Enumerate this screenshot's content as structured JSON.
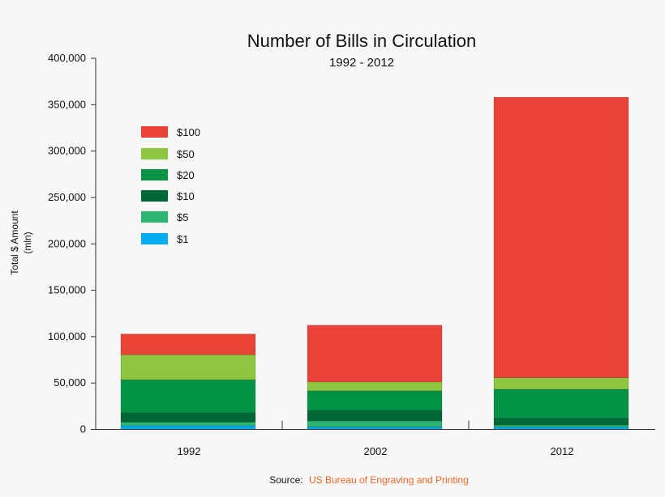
{
  "chart_data": {
    "type": "bar",
    "stacked": true,
    "title": "Number of Bills in Circulation",
    "subtitle": "1992 - 2012",
    "ylabel": "Total $ Amount",
    "ylabel_unit": "(mln)",
    "xlabel": "",
    "ylim": [
      0,
      400000
    ],
    "yticks": [
      0,
      50000,
      100000,
      150000,
      200000,
      250000,
      300000,
      350000,
      400000
    ],
    "ytick_labels": [
      "0",
      "50,000",
      "100,000",
      "150,000",
      "200,000",
      "250,000",
      "300,000",
      "350,000",
      "400,000"
    ],
    "categories": [
      "1992",
      "2002",
      "2012"
    ],
    "series": [
      {
        "name": "$1",
        "color": "#00aeef",
        "values": [
          3900,
          2600,
          2600
        ]
      },
      {
        "name": "$5",
        "color": "#2db574",
        "values": [
          3900,
          6500,
          2200
        ]
      },
      {
        "name": "$10",
        "color": "#006837",
        "values": [
          10000,
          11300,
          7000
        ]
      },
      {
        "name": "$20",
        "color": "#009245",
        "values": [
          35700,
          21200,
          31400
        ]
      },
      {
        "name": "$50",
        "color": "#8dc63f",
        "values": [
          27000,
          9600,
          12500
        ]
      },
      {
        "name": "$100",
        "color": "#e94236",
        "values": [
          22300,
          61100,
          302300
        ]
      }
    ],
    "legend_position": "top-left",
    "grid": false
  },
  "source": {
    "label": "Source:",
    "text": "US Bureau of Engraving and Printing",
    "color": "#f26522"
  }
}
